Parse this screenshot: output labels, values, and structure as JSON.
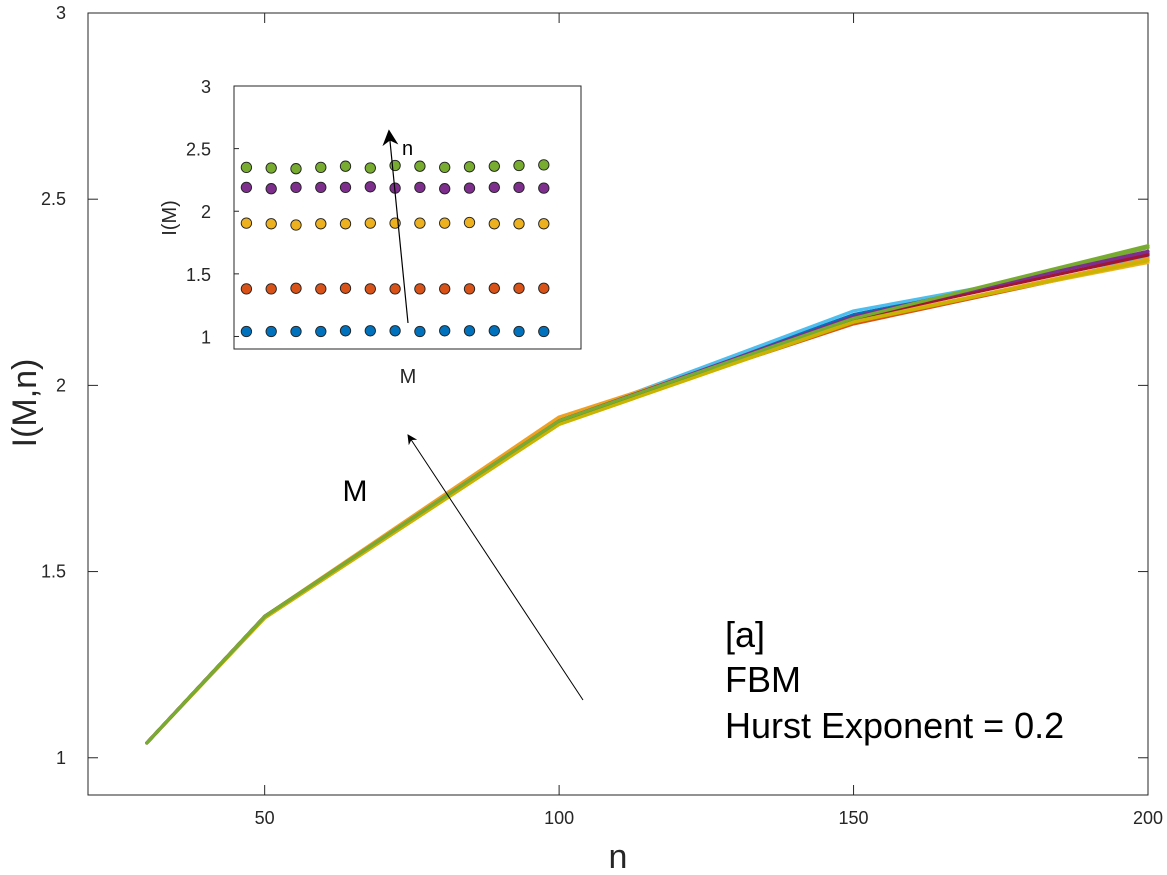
{
  "chart_data": [
    {
      "id": "main",
      "type": "line",
      "title": "",
      "xlabel": "n",
      "ylabel": "I(M,n)",
      "xlim": [
        20,
        200
      ],
      "ylim": [
        0.9,
        3
      ],
      "xticks": [
        50,
        100,
        150,
        200
      ],
      "yticks": [
        1,
        1.5,
        2,
        2.5,
        3
      ],
      "grid": false,
      "legend": "none",
      "x": [
        30,
        50,
        100,
        150,
        200
      ],
      "series": [
        {
          "color": "#0072BD",
          "values": [
            1.04,
            1.38,
            1.905,
            2.19,
            2.35
          ]
        },
        {
          "color": "#D95319",
          "values": [
            1.04,
            1.38,
            1.905,
            2.165,
            2.335
          ]
        },
        {
          "color": "#EDB120",
          "values": [
            1.04,
            1.375,
            1.91,
            2.175,
            2.33
          ]
        },
        {
          "color": "#7E2F8E",
          "values": [
            1.04,
            1.38,
            1.9,
            2.18,
            2.355
          ]
        },
        {
          "color": "#77AC30",
          "values": [
            1.04,
            1.38,
            1.9,
            2.175,
            2.37
          ]
        },
        {
          "color": "#4DBEEE",
          "values": [
            1.04,
            1.38,
            1.905,
            2.2,
            2.345
          ]
        },
        {
          "color": "#A2142F",
          "values": [
            1.04,
            1.38,
            1.905,
            2.18,
            2.35
          ]
        },
        {
          "color": "#F0A020",
          "values": [
            1.04,
            1.38,
            1.915,
            2.17,
            2.34
          ]
        },
        {
          "color": "#C9B400",
          "values": [
            1.04,
            1.375,
            1.895,
            2.17,
            2.335
          ]
        },
        {
          "color": "#7E2F8E",
          "values": [
            1.04,
            1.38,
            1.905,
            2.185,
            2.36
          ]
        },
        {
          "color": "#77AC30",
          "values": [
            1.04,
            1.38,
            1.905,
            2.18,
            2.375
          ]
        }
      ],
      "arrow_label": "M",
      "annotation_lines": [
        "[a]",
        "FBM",
        "Hurst Exponent = 0.2"
      ]
    },
    {
      "id": "inset",
      "type": "scatter",
      "title": "",
      "xlabel": "M",
      "ylabel": "I(M)",
      "xlim": [
        0.5,
        14.5
      ],
      "ylim": [
        0.9,
        3
      ],
      "yticks": [
        1,
        1.5,
        2,
        2.5,
        3
      ],
      "grid": false,
      "legend": "none",
      "x": [
        1,
        2,
        3,
        4,
        5,
        6,
        7,
        8,
        9,
        10,
        11,
        12,
        13
      ],
      "series": [
        {
          "color": "#0072BD",
          "values": [
            1.04,
            1.04,
            1.04,
            1.04,
            1.045,
            1.045,
            1.045,
            1.04,
            1.045,
            1.045,
            1.045,
            1.04,
            1.04
          ]
        },
        {
          "color": "#D95319",
          "values": [
            1.38,
            1.38,
            1.385,
            1.38,
            1.385,
            1.38,
            1.38,
            1.38,
            1.38,
            1.38,
            1.385,
            1.385,
            1.385
          ]
        },
        {
          "color": "#EDB120",
          "values": [
            1.905,
            1.9,
            1.89,
            1.9,
            1.9,
            1.905,
            1.905,
            1.905,
            1.905,
            1.91,
            1.9,
            1.9,
            1.9
          ]
        },
        {
          "color": "#7E2F8E",
          "values": [
            2.19,
            2.18,
            2.19,
            2.19,
            2.19,
            2.195,
            2.185,
            2.19,
            2.18,
            2.185,
            2.19,
            2.19,
            2.185
          ]
        },
        {
          "color": "#77AC30",
          "values": [
            2.35,
            2.345,
            2.34,
            2.35,
            2.36,
            2.345,
            2.365,
            2.36,
            2.35,
            2.355,
            2.36,
            2.365,
            2.37
          ]
        }
      ],
      "arrow_label": "n"
    }
  ]
}
